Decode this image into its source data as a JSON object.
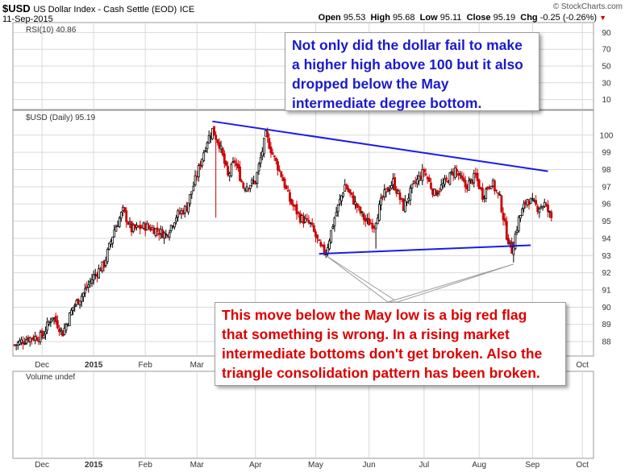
{
  "header": {
    "symbol": "$USD",
    "name": "US Dollar Index - Cash Settle (EOD)",
    "exchange": "ICE",
    "date": "11-Sep-2015",
    "watermark": "© StockCharts.com",
    "open_label": "Open",
    "open_value": "95.53",
    "high_label": "High",
    "high_value": "95.68",
    "low_label": "Low",
    "low_value": "95.11",
    "close_label": "Close",
    "close_value": "95.19",
    "chg_label": "Chg",
    "chg_value": "-0.25 (-0.26%)"
  },
  "colors": {
    "up": "#000000",
    "down": "#cc0000",
    "trendline": "#1a1aee",
    "note_blue": "#1a1acc",
    "note_red": "#dd0000",
    "grid": "#d9d9d9",
    "panel_bg": "#ffffff"
  },
  "panels": {
    "rsi_label": "RSI(10) 40.86",
    "price_label": "$USD (Daily) 95.19",
    "volume_label": "Volume undef"
  },
  "chart_data": {
    "type": "candlestick",
    "rsi_ticks": [
      "90",
      "70",
      "50",
      "30",
      "10"
    ],
    "price_ticks": [
      "100",
      "99",
      "98",
      "97",
      "96",
      "95",
      "94",
      "93",
      "92",
      "91",
      "90",
      "89",
      "88"
    ],
    "ylim": [
      87.3,
      101.3
    ],
    "months": [
      "Dec",
      "2015",
      "Feb",
      "Mar",
      "Apr",
      "May",
      "Jun",
      "Jul",
      "Aug",
      "Sep",
      "Oct"
    ],
    "month_index": [
      16,
      46,
      76,
      106,
      140,
      175,
      206,
      238,
      270,
      301,
      330
    ],
    "last_index": 312,
    "closes": [
      {
        "i": 0,
        "v": 87.8
      },
      {
        "i": 8,
        "v": 88.2
      },
      {
        "i": 16,
        "v": 88.3
      },
      {
        "i": 22,
        "v": 89.5
      },
      {
        "i": 28,
        "v": 88.5
      },
      {
        "i": 34,
        "v": 90.0
      },
      {
        "i": 40,
        "v": 90.8
      },
      {
        "i": 46,
        "v": 91.8
      },
      {
        "i": 52,
        "v": 92.5
      },
      {
        "i": 58,
        "v": 94.5
      },
      {
        "i": 63,
        "v": 95.6
      },
      {
        "i": 68,
        "v": 94.5
      },
      {
        "i": 76,
        "v": 94.7
      },
      {
        "i": 82,
        "v": 94.5
      },
      {
        "i": 88,
        "v": 94.2
      },
      {
        "i": 94,
        "v": 95.3
      },
      {
        "i": 100,
        "v": 95.8
      },
      {
        "i": 106,
        "v": 97.7
      },
      {
        "i": 112,
        "v": 99.7
      },
      {
        "i": 115,
        "v": 100.3
      },
      {
        "i": 119,
        "v": 99.5
      },
      {
        "i": 124,
        "v": 97.6
      },
      {
        "i": 128,
        "v": 98.5
      },
      {
        "i": 133,
        "v": 97.0
      },
      {
        "i": 140,
        "v": 97.3
      },
      {
        "i": 146,
        "v": 100.0
      },
      {
        "i": 150,
        "v": 98.9
      },
      {
        "i": 155,
        "v": 97.7
      },
      {
        "i": 160,
        "v": 96.2
      },
      {
        "i": 166,
        "v": 95.2
      },
      {
        "i": 172,
        "v": 94.8
      },
      {
        "i": 178,
        "v": 93.4
      },
      {
        "i": 181,
        "v": 93.2
      },
      {
        "i": 186,
        "v": 95.2
      },
      {
        "i": 192,
        "v": 97.1
      },
      {
        "i": 198,
        "v": 96.0
      },
      {
        "i": 204,
        "v": 95.0
      },
      {
        "i": 209,
        "v": 94.8
      },
      {
        "i": 214,
        "v": 96.4
      },
      {
        "i": 220,
        "v": 97.3
      },
      {
        "i": 226,
        "v": 95.8
      },
      {
        "i": 232,
        "v": 97.1
      },
      {
        "i": 238,
        "v": 97.9
      },
      {
        "i": 244,
        "v": 96.6
      },
      {
        "i": 250,
        "v": 97.2
      },
      {
        "i": 256,
        "v": 98.0
      },
      {
        "i": 262,
        "v": 97.0
      },
      {
        "i": 268,
        "v": 97.6
      },
      {
        "i": 272,
        "v": 96.5
      },
      {
        "i": 277,
        "v": 97.3
      },
      {
        "i": 282,
        "v": 96.3
      },
      {
        "i": 286,
        "v": 94.2
      },
      {
        "i": 289,
        "v": 93.3
      },
      {
        "i": 293,
        "v": 95.1
      },
      {
        "i": 298,
        "v": 96.3
      },
      {
        "i": 304,
        "v": 95.8
      },
      {
        "i": 308,
        "v": 96.0
      },
      {
        "i": 312,
        "v": 95.19
      }
    ],
    "extreme_lows": [
      {
        "i": 117,
        "v": 95.2
      },
      {
        "i": 290,
        "v": 92.6
      },
      {
        "i": 210,
        "v": 93.4
      }
    ],
    "trendlines": [
      {
        "name": "upper-resistance-line",
        "from": {
          "i": 115,
          "v": 100.8
        },
        "to": {
          "i": 310,
          "v": 97.9
        }
      },
      {
        "name": "lower-support-line",
        "from": {
          "i": 177,
          "v": 93.1
        },
        "to": {
          "i": 300,
          "v": 93.6
        }
      }
    ],
    "callout_pointers": [
      {
        "name": "pointer-may-low",
        "to": {
          "i": 181,
          "v": 93.0
        }
      },
      {
        "name": "pointer-aug-low",
        "to": {
          "i": 290,
          "v": 92.5
        }
      }
    ]
  },
  "annotations": {
    "blue_note": [
      "Not only did the dollar fail to make",
      "a higher high above 100 but it also",
      "dropped below the May",
      "intermediate degree bottom."
    ],
    "red_note": [
      "This move below the May low is a big red flag",
      "that something is wrong. In a rising market",
      "intermediate bottoms don't get broken. Also the",
      "triangle consolidation pattern has been broken."
    ]
  }
}
